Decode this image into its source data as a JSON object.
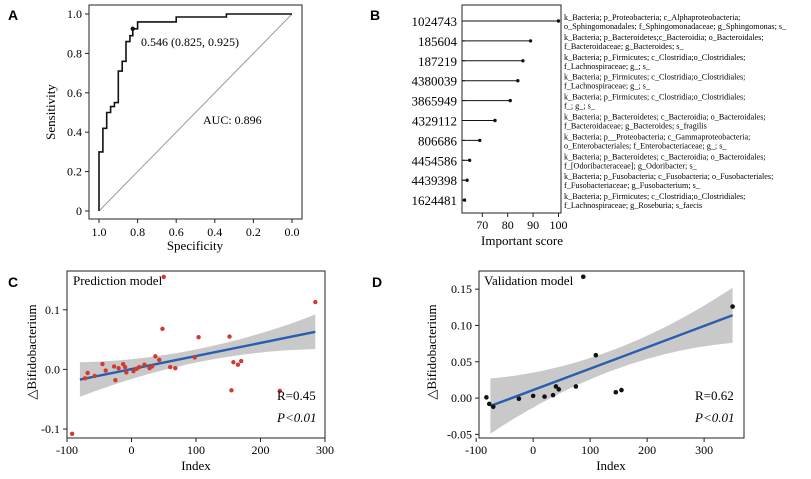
{
  "chart_data": [
    {
      "panel": "A",
      "type": "line",
      "xlabel": "Specificity",
      "ylabel": "Sensitivity",
      "xlim": [
        1.0,
        0.0
      ],
      "ylim": [
        0.0,
        1.0
      ],
      "x_ticks": [
        "1.0",
        "0.8",
        "0.6",
        "0.4",
        "0.2",
        "0.0"
      ],
      "y_ticks": [
        "0",
        "0.2",
        "0.4",
        "0.6",
        "0.8",
        "1.0"
      ],
      "series": [
        {
          "x": [
            1.0,
            1.0,
            0.98,
            0.98,
            0.96,
            0.96,
            0.94,
            0.94,
            0.92,
            0.92,
            0.9,
            0.9,
            0.88,
            0.88,
            0.86,
            0.86,
            0.84,
            0.84,
            0.825,
            0.825,
            0.8,
            0.8,
            0.6,
            0.6,
            0.34,
            0.34,
            0.0
          ],
          "y": [
            0.0,
            0.3,
            0.3,
            0.42,
            0.42,
            0.5,
            0.5,
            0.53,
            0.53,
            0.55,
            0.55,
            0.71,
            0.71,
            0.76,
            0.76,
            0.86,
            0.86,
            0.89,
            0.89,
            0.925,
            0.925,
            0.96,
            0.96,
            0.985,
            0.985,
            1.0,
            1.0
          ]
        }
      ],
      "reference_line": true,
      "annotations": [
        {
          "text": "0.546 (0.825, 0.925)",
          "point": [
            0.825,
            0.925
          ]
        },
        {
          "text": "AUC: 0.896"
        }
      ]
    },
    {
      "panel": "B",
      "type": "bar",
      "orientation": "horizontal",
      "xlabel": "Important score",
      "xlim": [
        62,
        101
      ],
      "x_ticks": [
        70,
        80,
        90,
        100
      ],
      "categories": [
        "1024743",
        "185604",
        "187219",
        "4380039",
        "3865949",
        "4329112",
        "806686",
        "4454586",
        "4439398",
        "1624481"
      ],
      "values": [
        100,
        89,
        86,
        84,
        81,
        75,
        69,
        65,
        64,
        63
      ],
      "taxa": [
        [
          "k_Bacteria; p_Proteobacteria; c_Alphaproteobacteria;",
          "o_Sphingomonadales; f_Sphingomonadaceae; g_Sphingomonas; s_"
        ],
        [
          "k_Bacteria; p_Bacteroidetes;c_Bacteroidia; o_Bacteroidales;",
          "f_Bacteroidaceae; g_Bacteroides; s_"
        ],
        [
          "k_Bacteria; p_Firmicutes; c_Clostridia;o_Clostridiales;",
          "f_Lachnospiraceae; g_; s_"
        ],
        [
          "k_Bacteria; p_Firmicutes; c_Clostridia;o_Clostridiales;",
          "f_Lachnospiraceae; g_; s_"
        ],
        [
          "k_Bacteria; p_Firmicutes; c_Clostridia;o_Clostridiales;",
          "f_; g_; s_"
        ],
        [
          "k_Bacteria; p_Bacteroidetes; c_Bacteroidia; o_Bacteroidales;",
          "f_Bacteroidaceae; g_Bacteroides; s_fragilis"
        ],
        [
          "k_Bacteria; p__Proteobacteria; c_Gammaproteobacteria;",
          "o_Enterobacteriales; f_Enterobacteriaceae; g_; s_"
        ],
        [
          "k_Bacteria; p_Bacteroidetes; c_Bacteroidia; o_Bacteroidales;",
          "f_[Odoribacteraceae]; g_Odoribacter; s_"
        ],
        [
          "k_Bacteria; p_Fusobacteria; c_Fusobacteria; o_Fusobacteriales;",
          "f_Fusobacteriaceae; g_Fusobacterium; s_"
        ],
        [
          "k_Bacteria; p_Firmicutes; c_Clostridia;o_Clostridiales;",
          "f_Lachnospiraceae; g_Roseburia; s_faecis"
        ]
      ]
    },
    {
      "panel": "C",
      "type": "scatter",
      "title": "Prediction model",
      "xlabel": "Index",
      "ylabel": "△Bifidobacterium",
      "xlim": [
        -100,
        300
      ],
      "ylim": [
        -0.115,
        0.165
      ],
      "x_ticks": [
        -100,
        0,
        100,
        200,
        300
      ],
      "y_ticks": [
        "-0.1",
        "0.0",
        "0.1"
      ],
      "color": "#d43a2c",
      "line_color": "#2a5db0",
      "band_color": "#c9c9c9",
      "x": [
        -92,
        -72,
        -68,
        -57,
        -45,
        -40,
        -27,
        -25,
        -20,
        -13,
        -10,
        -8,
        3,
        8,
        12,
        20,
        28,
        32,
        37,
        43,
        48,
        50,
        60,
        68,
        98,
        104,
        152,
        155,
        158,
        165,
        170,
        230,
        285
      ],
      "y": [
        -0.108,
        -0.015,
        -0.006,
        -0.011,
        0.009,
        -0.002,
        0.005,
        -0.018,
        0.002,
        0.009,
        0.004,
        -0.005,
        -0.003,
        0.001,
        0.004,
        0.008,
        0.002,
        0.005,
        0.022,
        0.016,
        0.068,
        0.155,
        0.004,
        0.002,
        0.02,
        0.054,
        0.055,
        -0.035,
        0.012,
        0.008,
        0.014,
        -0.036,
        0.113
      ],
      "fit": {
        "x": [
          -80,
          285
        ],
        "y": [
          -0.017,
          0.063
        ]
      },
      "annotations": [
        "R=0.45",
        "P<0.01"
      ]
    },
    {
      "panel": "D",
      "type": "scatter",
      "title": "Validation model",
      "xlabel": "Index",
      "ylabel": "△Bifidobacterium",
      "xlim": [
        -95,
        370
      ],
      "ylim": [
        -0.055,
        0.175
      ],
      "x_ticks": [
        -100,
        0,
        100,
        200,
        300
      ],
      "y_ticks": [
        "-0.05",
        "0.00",
        "0.05",
        "0.10",
        "0.15"
      ],
      "color": "#111111",
      "line_color": "#2a5db0",
      "band_color": "#c9c9c9",
      "x": [
        -82,
        -77,
        -70,
        -25,
        0,
        20,
        35,
        40,
        45,
        75,
        88,
        110,
        145,
        155,
        350
      ],
      "y": [
        0.001,
        -0.008,
        -0.012,
        -0.001,
        0.003,
        0.002,
        0.004,
        0.016,
        0.012,
        0.016,
        0.167,
        0.059,
        0.008,
        0.011,
        0.126
      ],
      "fit": {
        "x": [
          -75,
          350
        ],
        "y": [
          -0.011,
          0.114
        ]
      },
      "annotations": [
        "R=0.62",
        "P<0.01"
      ]
    }
  ]
}
